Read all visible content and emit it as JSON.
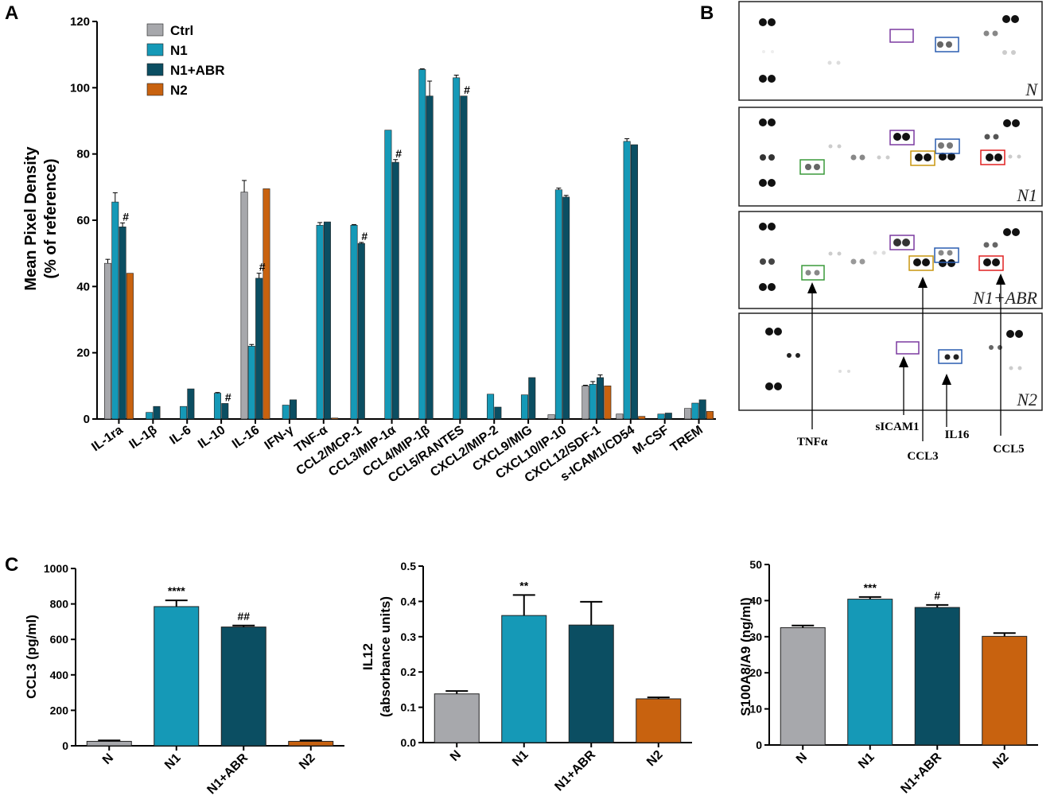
{
  "panels": {
    "a": "A",
    "b": "B",
    "c": "C"
  },
  "colors": {
    "Ctrl": "#a7a8ac",
    "N1": "#1599b7",
    "N1+ABR": "#0b4e62",
    "N2": "#c8620f"
  },
  "chart_data": [
    {
      "type": "bar",
      "id": "A",
      "ylabel_line1": "Mean Pixel Density",
      "ylabel_line2": "(% of reference)",
      "ylim": [
        0,
        120
      ],
      "yticks": [
        0,
        20,
        40,
        60,
        80,
        100,
        120
      ],
      "legend": [
        "Ctrl",
        "N1",
        "N1+ABR",
        "N2"
      ],
      "categories": [
        "IL-1ra",
        "IL-1β",
        "IL-6",
        "IL-10",
        "IL-16",
        "IFN-γ",
        "TNF-α",
        "CCL2/MCP-1",
        "CCL3/MIP-1α",
        "CCL4/MIP-1β",
        "CCL5/RANTES",
        "CXCL2/MIP-2",
        "CXCL9/MIG",
        "CXCL10/IP-10",
        "CXCL12/SDF-1",
        "s-ICAM1/CD54",
        "M-CSF",
        "TREM"
      ],
      "series": [
        {
          "name": "Ctrl",
          "values": [
            47,
            0,
            0,
            0,
            68.5,
            0,
            0,
            0,
            0,
            0,
            0,
            0,
            0,
            1.3,
            10,
            1.5,
            0,
            3.2
          ],
          "errors": [
            1.2,
            0,
            0,
            0,
            3.5,
            0,
            0,
            0,
            0,
            0,
            0,
            0,
            0,
            0,
            0.2,
            0,
            0,
            0
          ]
        },
        {
          "name": "N1",
          "values": [
            65.5,
            2,
            3.8,
            7.8,
            22,
            4.2,
            58.5,
            58.5,
            87.2,
            105.5,
            103,
            7.5,
            7.3,
            69.2,
            10.5,
            83.8,
            1.5,
            4.8
          ],
          "errors": [
            2.8,
            0,
            0,
            0.2,
            0.5,
            0,
            0.8,
            0.2,
            0,
            0.2,
            0.8,
            0,
            0,
            0.5,
            0.8,
            0.8,
            0,
            0
          ]
        },
        {
          "name": "N1+ABR",
          "values": [
            58,
            3.8,
            9.1,
            4.7,
            42.5,
            5.8,
            59.5,
            53,
            77.5,
            97.5,
            97.5,
            3.6,
            12.5,
            67,
            12.5,
            82.8,
            1.8,
            5.8
          ],
          "errors": [
            1.2,
            0,
            0,
            0,
            1.5,
            0,
            0,
            0.3,
            0.8,
            4.5,
            0,
            0,
            0,
            0.5,
            0.8,
            0,
            0,
            0
          ]
        },
        {
          "name": "N2",
          "values": [
            44,
            0,
            0,
            0,
            69.5,
            0,
            0.3,
            0,
            0,
            0,
            0,
            0,
            0,
            0,
            10,
            0.8,
            0,
            2.3
          ],
          "errors": [
            0,
            0,
            0,
            0,
            0,
            0,
            0,
            0,
            0,
            0,
            0,
            0,
            0,
            0,
            0,
            0,
            0,
            0
          ]
        }
      ],
      "annotations": [
        {
          "category": "IL-1ra",
          "series": "N1+ABR",
          "text": "#"
        },
        {
          "category": "IL-10",
          "series": "N1+ABR",
          "text": "#"
        },
        {
          "category": "IL-16",
          "series": "N1+ABR",
          "text": "#"
        },
        {
          "category": "CCL2/MCP-1",
          "series": "N1+ABR",
          "text": "#"
        },
        {
          "category": "CCL3/MIP-1α",
          "series": "N1+ABR",
          "text": "#"
        },
        {
          "category": "CCL5/RANTES",
          "series": "N1+ABR",
          "text": "#"
        }
      ]
    },
    {
      "type": "bar",
      "id": "C1",
      "ylabel_line1": "CCL3 (pg/ml)",
      "ylabel_line2": "",
      "ylim": [
        0,
        1000
      ],
      "yticks": [
        0,
        200,
        400,
        600,
        800,
        1000
      ],
      "categories": [
        "N",
        "N1",
        "N1+ABR",
        "N2"
      ],
      "values": [
        25,
        785,
        670,
        25
      ],
      "errors": [
        5,
        35,
        8,
        5
      ],
      "annotations": [
        "",
        "****",
        "##",
        ""
      ]
    },
    {
      "type": "bar",
      "id": "C2",
      "ylabel_line1": "IL12",
      "ylabel_line2": "(absorbance units)",
      "ylim": [
        0,
        0.5
      ],
      "yticks": [
        "0.0",
        "0.1",
        "0.2",
        "0.3",
        "0.4",
        "0.5"
      ],
      "categories": [
        "N",
        "N1",
        "N1+ABR",
        "N2"
      ],
      "values": [
        0.138,
        0.36,
        0.333,
        0.124
      ],
      "errors": [
        0.008,
        0.058,
        0.066,
        0.004
      ],
      "annotations": [
        "",
        "**",
        "",
        ""
      ]
    },
    {
      "type": "bar",
      "id": "C3",
      "ylabel_line1": "S100A8/A9 (ng/ml)",
      "ylabel_line2": "",
      "ylim": [
        0,
        50
      ],
      "yticks": [
        0,
        10,
        20,
        30,
        40,
        50
      ],
      "categories": [
        "N",
        "N1",
        "N1+ABR",
        "N2"
      ],
      "values": [
        32.5,
        40.4,
        38.1,
        30.1
      ],
      "errors": [
        0.6,
        0.6,
        0.7,
        0.9
      ],
      "annotations": [
        "",
        "***",
        "#",
        ""
      ]
    }
  ],
  "blot": {
    "panels": [
      "N",
      "N1",
      "N1+ABR",
      "N2"
    ],
    "arrows": [
      "TNFα",
      "sICAM1",
      "IL16",
      "CCL3",
      "CCL5"
    ]
  }
}
